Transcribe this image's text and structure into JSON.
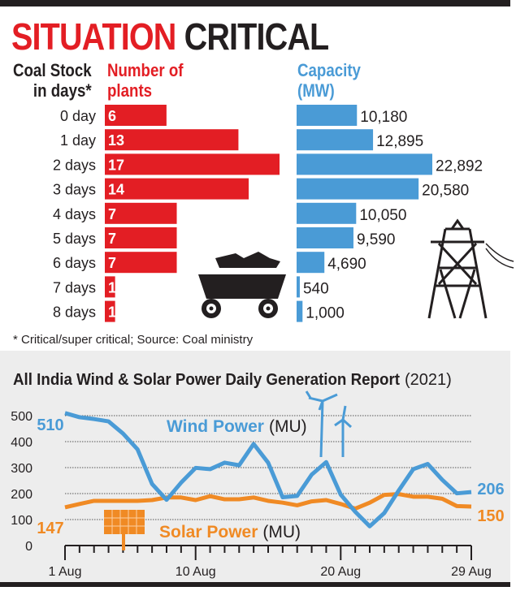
{
  "title": {
    "part1": "SITUATION",
    "part2": "CRITICAL"
  },
  "chart_data": [
    {
      "type": "bar",
      "title": "SITUATION CRITICAL",
      "categories": [
        "0 day",
        "1 day",
        "2 days",
        "3 days",
        "4 days",
        "5 days",
        "6 days",
        "7 days",
        "8 days"
      ],
      "category_header": [
        "Coal Stock",
        "in days*"
      ],
      "series": [
        {
          "name": "Number of plants",
          "header": [
            "Number of",
            "plants"
          ],
          "color": "#e31e24",
          "values": [
            6,
            13,
            17,
            14,
            7,
            7,
            7,
            1,
            1
          ]
        },
        {
          "name": "Capacity (MW)",
          "header": [
            "Capacity",
            "(MW)"
          ],
          "color": "#4a9bd6",
          "values": [
            10180,
            12895,
            22892,
            20580,
            10050,
            9590,
            4690,
            540,
            1000
          ],
          "labels": [
            "10,180",
            "12,895",
            "22,892",
            "20,580",
            "10,050",
            "9,590",
            "4,690",
            "540",
            "1,000"
          ]
        }
      ],
      "footnote": "* Critical/super critical; Source: Coal ministry"
    },
    {
      "type": "line",
      "title": "All India Wind & Solar Power Daily Generation Report",
      "title_suffix": "(2021)",
      "x": [
        1,
        2,
        3,
        4,
        5,
        6,
        7,
        8,
        9,
        10,
        11,
        12,
        13,
        14,
        15,
        16,
        17,
        18,
        19,
        20,
        21,
        22,
        23,
        24,
        25,
        26,
        27,
        28,
        29
      ],
      "xticks": [
        {
          "day": 1,
          "label": "1 Aug"
        },
        {
          "day": 10,
          "label": "10 Aug"
        },
        {
          "day": 20,
          "label": "20 Aug"
        },
        {
          "day": 29,
          "label": "29 Aug"
        }
      ],
      "ylim": [
        0,
        500
      ],
      "yticks": [
        "0",
        "100",
        "200",
        "300",
        "400",
        "500"
      ],
      "grid": true,
      "series": [
        {
          "name": "Wind Power",
          "unit": "(MU)",
          "color": "#4a9bd6",
          "start_label": "510",
          "end_label": "206",
          "values": [
            510,
            494,
            487,
            478,
            431,
            370,
            237,
            176,
            242,
            299,
            294,
            319,
            309,
            391,
            319,
            186,
            191,
            273,
            321,
            196,
            130,
            74,
            125,
            212,
            294,
            314,
            253,
            201,
            206
          ]
        },
        {
          "name": "Solar Power",
          "unit": "(MU)",
          "color": "#f08a24",
          "start_label": "147",
          "end_label": "150",
          "values": [
            147,
            160,
            172,
            172,
            172,
            172,
            175,
            185,
            185,
            175,
            190,
            178,
            178,
            185,
            172,
            165,
            155,
            170,
            175,
            160,
            142,
            165,
            195,
            198,
            188,
            188,
            180,
            152,
            150
          ]
        }
      ]
    }
  ]
}
